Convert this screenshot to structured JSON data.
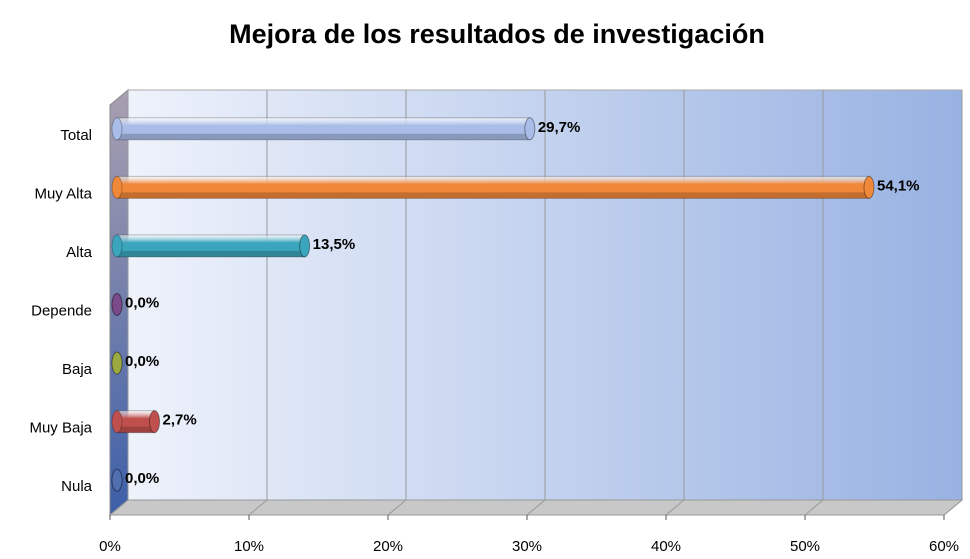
{
  "chart_data": {
    "type": "bar",
    "orientation": "horizontal",
    "title": "Mejora de los resultados de investigación",
    "categories": [
      "Total",
      "Muy Alta",
      "Alta",
      "Depende",
      "Baja",
      "Muy Baja",
      "Nula"
    ],
    "values": [
      29.7,
      54.1,
      13.5,
      0,
      0,
      2.7,
      0
    ],
    "value_labels": [
      "29,7%",
      "54,1%",
      "13,5%",
      "0,0%",
      "0,0%",
      "2,7%",
      "0,0%"
    ],
    "colors": [
      "#a9bde8",
      "#f0883a",
      "#3aa5bd",
      "#7a4a8a",
      "#9aaa40",
      "#c0504d",
      "#4f6fb0"
    ],
    "xlim": [
      0,
      60
    ],
    "xticks": [
      {
        "value": 0,
        "label": "0%"
      },
      {
        "value": 10,
        "label": "10%"
      },
      {
        "value": 20,
        "label": "20%"
      },
      {
        "value": 30,
        "label": "30%"
      },
      {
        "value": 40,
        "label": "40%"
      },
      {
        "value": 50,
        "label": "50%"
      },
      {
        "value": 60,
        "label": "60%"
      }
    ],
    "grid": true
  }
}
